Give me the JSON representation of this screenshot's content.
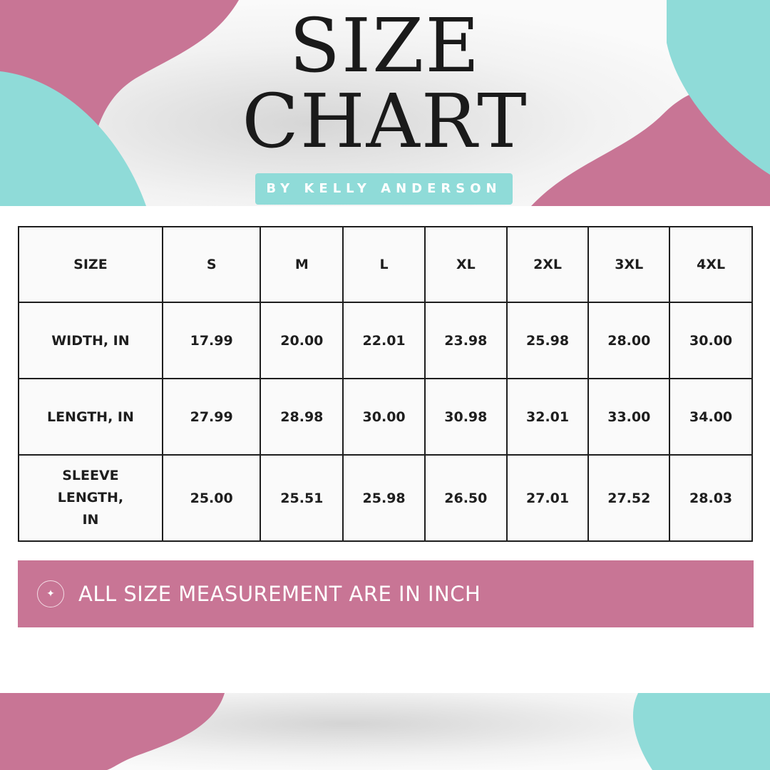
{
  "header": {
    "title_line1": "SIZE",
    "title_line2": "CHART",
    "byline": "BY KELLY ANDERSON"
  },
  "colors": {
    "pink": "#c87595",
    "teal": "#8fdbd8",
    "text": "#1e1e1e"
  },
  "table": {
    "header": [
      "SIZE",
      "S",
      "M",
      "L",
      "XL",
      "2XL",
      "3XL",
      "4XL"
    ],
    "rows": [
      [
        "WIDTH, IN",
        "17.99",
        "20.00",
        "22.01",
        "23.98",
        "25.98",
        "28.00",
        "30.00"
      ],
      [
        "LENGTH, IN",
        "27.99",
        "28.98",
        "30.00",
        "30.98",
        "32.01",
        "33.00",
        "34.00"
      ],
      [
        "SLEEVE LENGTH, IN",
        "25.00",
        "25.51",
        "25.98",
        "26.50",
        "27.01",
        "27.52",
        "28.03"
      ]
    ]
  },
  "note": {
    "icon": "sparkle-icon",
    "text": "ALL SIZE MEASUREMENT ARE IN INCH"
  }
}
